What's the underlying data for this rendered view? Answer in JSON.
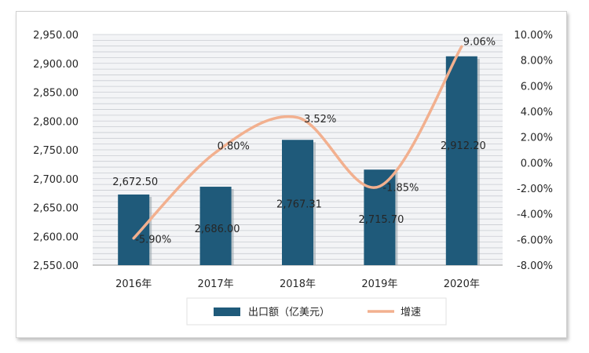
{
  "chart_data": {
    "type": "bar+line",
    "categories": [
      "2016年",
      "2017年",
      "2018年",
      "2019年",
      "2020年"
    ],
    "series": [
      {
        "name": "出口额（亿美元）",
        "type": "bar",
        "axis": "left",
        "color": "#1f5a7a",
        "values": [
          2672.5,
          2686.0,
          2767.31,
          2715.7,
          2912.2
        ],
        "labels": [
          "2,672.50",
          "2,686.00",
          "2,767.31",
          "2,715.70",
          "2,912.20"
        ]
      },
      {
        "name": "增速",
        "type": "line",
        "smooth": true,
        "axis": "right",
        "color": "#f2b08f",
        "values": [
          -5.9,
          0.8,
          3.52,
          -1.85,
          9.06
        ],
        "labels": [
          "-5.90%",
          "0.80%",
          "3.52%",
          "-1.85%",
          "9.06%"
        ]
      }
    ],
    "left_axis": {
      "ylim": [
        2550,
        2950
      ],
      "ticks": [
        "2,550.00",
        "2,600.00",
        "2,650.00",
        "2,700.00",
        "2,750.00",
        "2,800.00",
        "2,850.00",
        "2,900.00",
        "2,950.00"
      ]
    },
    "right_axis": {
      "ylim": [
        -8,
        10
      ],
      "ticks": [
        "-8.00%",
        "-6.00%",
        "-4.00%",
        "-2.00%",
        "0.00%",
        "2.00%",
        "4.00%",
        "6.00%",
        "8.00%",
        "10.00%"
      ]
    },
    "grid": true,
    "legend_position": "bottom",
    "colors": {
      "bar": "#1f5a7a",
      "line": "#f2b08f",
      "plot_background": "#f3f4f6",
      "grid": "#c9ccd2"
    }
  }
}
